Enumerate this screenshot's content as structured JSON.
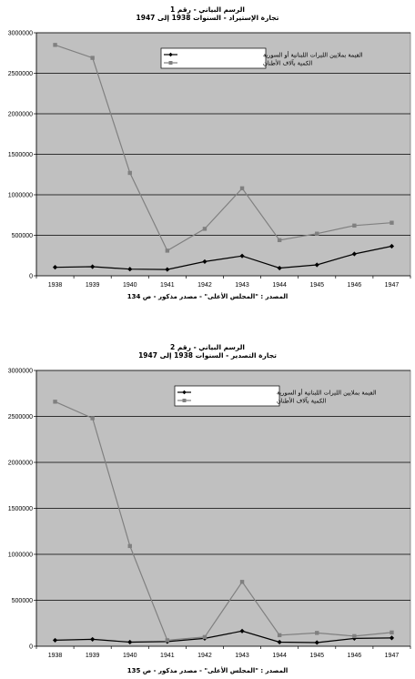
{
  "chart_data": [
    {
      "type": "line",
      "title": "الرسم البياني - رقم 1",
      "subtitle": "تجارة الإستيراد - السنوات 1938 إلى 1947",
      "source": "المصدر : \"المجلس الأعلى\" - مصدر مذكور - ص 134",
      "categories": [
        "1938",
        "1939",
        "1940",
        "1941",
        "1942",
        "1943",
        "1944",
        "1945",
        "1946",
        "1947"
      ],
      "ylim": [
        0,
        3000000
      ],
      "yticks": [
        "0",
        "500000",
        "1000000",
        "1500000",
        "2000000",
        "2500000",
        "3000000"
      ],
      "grid": true,
      "legend_position": "top-right",
      "series": [
        {
          "name": "القيمة بملايين الليرات اللبنانية أو السورية",
          "marker": "diamond",
          "color": "#000000",
          "values": [
            105000,
            112000,
            82000,
            78000,
            175000,
            245000,
            95000,
            135000,
            270000,
            365000
          ]
        },
        {
          "name": "الكمية بآلاف الأطنان",
          "marker": "square",
          "color": "#808080",
          "values": [
            2850000,
            2690000,
            1270000,
            310000,
            580000,
            1080000,
            440000,
            520000,
            620000,
            655000
          ]
        }
      ]
    },
    {
      "type": "line",
      "title": "الرسم البياني - رقم 2",
      "subtitle": "تجارة التصدير - السنوات 1938 إلى 1947",
      "source": "المصدر : \"المجلس الأعلى\" - مصدر مذكور - ص 135",
      "categories": [
        "1938",
        "1939",
        "1940",
        "1941",
        "1942",
        "1943",
        "1944",
        "1945",
        "1946",
        "1947"
      ],
      "ylim": [
        0,
        3000000
      ],
      "yticks": [
        "0",
        "500000",
        "1000000",
        "1500000",
        "2000000",
        "2500000",
        "3000000"
      ],
      "grid": true,
      "legend_position": "top-right",
      "series": [
        {
          "name": "القيمة بملايين الليرات اللبنانية أو السورية",
          "marker": "diamond",
          "color": "#000000",
          "values": [
            65000,
            75000,
            45000,
            50000,
            85000,
            165000,
            45000,
            40000,
            85000,
            90000
          ]
        },
        {
          "name": "الكمية بآلاف الأطنان",
          "marker": "square",
          "color": "#808080",
          "values": [
            2660000,
            2480000,
            1090000,
            65000,
            100000,
            700000,
            120000,
            145000,
            110000,
            150000
          ]
        }
      ]
    }
  ]
}
